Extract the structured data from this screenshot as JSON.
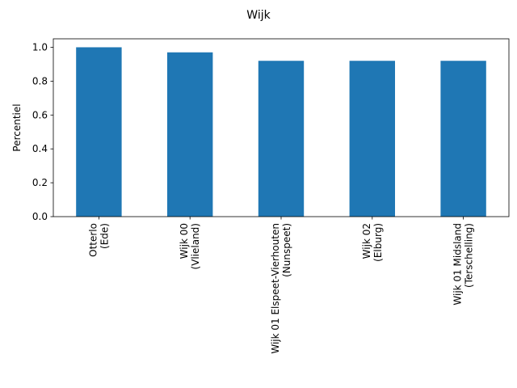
{
  "chart_data": {
    "type": "bar",
    "title": "Wijk",
    "xlabel": "",
    "ylabel": "Percentiel",
    "ylim": [
      0,
      1.05
    ],
    "yticks": [
      0.0,
      0.2,
      0.4,
      0.6,
      0.8,
      1.0
    ],
    "ytick_labels": [
      "0.0",
      "0.2",
      "0.4",
      "0.6",
      "0.8",
      "1.0"
    ],
    "categories": [
      [
        "Otterlo",
        "(Ede)"
      ],
      [
        "Wijk 00",
        "(Vlieland)"
      ],
      [
        "Wijk 01 Elspeet-Vierhouten",
        "(Nunspeet)"
      ],
      [
        "Wijk 02",
        "(Elburg)"
      ],
      [
        "Wijk 01 Midsland",
        "(Terschelling)"
      ]
    ],
    "values": [
      1.0,
      0.97,
      0.92,
      0.92,
      0.92
    ],
    "bar_color": "#1f77b4",
    "grid": false,
    "legend": "none"
  }
}
